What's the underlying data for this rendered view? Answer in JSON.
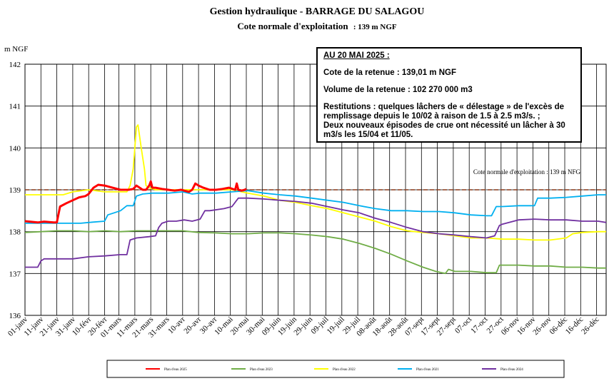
{
  "header": {
    "title": "Gestion hydraulique - BARRAGE DU SALAGOU",
    "subtitle_prefix": "Cote normale d'exploitation",
    "subtitle_value": ": 139 m NGF"
  },
  "infobox": {
    "date": "AU 20 MAI 2025 :",
    "cote": "Cote de la retenue : 139,01 m NGF",
    "volume": "Volume de la retenue : 102 270 000 m3",
    "restitutions_1": "Restitutions : quelques lâchers de « délestage » de l'excès de remplissage depuis le 10/02 à raison de 1.5 à 2.5 m3/s. ;",
    "restitutions_2": "Deux nouveaux épisodes de crue ont nécessité un lâcher à 30 m3/s les 15/04 et 11/05."
  },
  "chart_data": {
    "type": "line",
    "ylabel": "m NGF",
    "ylim": [
      136,
      142
    ],
    "yticks": [
      136,
      137,
      138,
      139,
      140,
      141,
      142
    ],
    "xlim": [
      0,
      365
    ],
    "xticks": [
      {
        "day": 0,
        "label": "01-janv"
      },
      {
        "day": 10,
        "label": "11-janv"
      },
      {
        "day": 20,
        "label": "21-janv"
      },
      {
        "day": 30,
        "label": "31-janv"
      },
      {
        "day": 40,
        "label": "10-févr"
      },
      {
        "day": 50,
        "label": "20-févr"
      },
      {
        "day": 59,
        "label": "01-mars"
      },
      {
        "day": 69,
        "label": "11-mars"
      },
      {
        "day": 79,
        "label": "21-mars"
      },
      {
        "day": 89,
        "label": "31-mars"
      },
      {
        "day": 99,
        "label": "10-avr"
      },
      {
        "day": 109,
        "label": "20-avr"
      },
      {
        "day": 119,
        "label": "30-avr"
      },
      {
        "day": 129,
        "label": "10-mai"
      },
      {
        "day": 139,
        "label": "20-mai"
      },
      {
        "day": 149,
        "label": "30-mai"
      },
      {
        "day": 159,
        "label": "09-juin"
      },
      {
        "day": 169,
        "label": "19-juin"
      },
      {
        "day": 179,
        "label": "29-juin"
      },
      {
        "day": 189,
        "label": "09-juil"
      },
      {
        "day": 199,
        "label": "19-juil"
      },
      {
        "day": 209,
        "label": "29-juil"
      },
      {
        "day": 219,
        "label": "08-août"
      },
      {
        "day": 229,
        "label": "18-août"
      },
      {
        "day": 239,
        "label": "28-août"
      },
      {
        "day": 249,
        "label": "07-sept"
      },
      {
        "day": 259,
        "label": "17-sept"
      },
      {
        "day": 269,
        "label": "27-sept"
      },
      {
        "day": 279,
        "label": "07-oct"
      },
      {
        "day": 289,
        "label": "17-oct"
      },
      {
        "day": 299,
        "label": "27-oct"
      },
      {
        "day": 309,
        "label": "06-nov"
      },
      {
        "day": 319,
        "label": "16-nov"
      },
      {
        "day": 329,
        "label": "26-nov"
      },
      {
        "day": 339,
        "label": "06-déc"
      },
      {
        "day": 349,
        "label": "16-déc"
      },
      {
        "day": 359,
        "label": "26-déc"
      }
    ],
    "reference_line": {
      "value": 139,
      "label": "Cote normale d'exploitation : 139 m NFG",
      "color": "#8b3a1a"
    },
    "grid": true,
    "legend_position": "bottom",
    "series": [
      {
        "name": "Plan d'eau 2025",
        "color": "#ff0000",
        "width": 3,
        "points": [
          [
            0,
            138.25
          ],
          [
            8,
            138.22
          ],
          [
            12,
            138.24
          ],
          [
            18,
            138.22
          ],
          [
            20,
            138.22
          ],
          [
            22,
            138.6
          ],
          [
            26,
            138.68
          ],
          [
            30,
            138.75
          ],
          [
            34,
            138.82
          ],
          [
            38,
            138.85
          ],
          [
            40,
            138.9
          ],
          [
            43,
            139.05
          ],
          [
            46,
            139.12
          ],
          [
            50,
            139.1
          ],
          [
            55,
            139.05
          ],
          [
            60,
            139.0
          ],
          [
            65,
            139.0
          ],
          [
            68,
            139.02
          ],
          [
            70,
            139.1
          ],
          [
            72,
            139.05
          ],
          [
            74,
            139.0
          ],
          [
            76,
            139.0
          ],
          [
            78,
            139.1
          ],
          [
            79,
            139.2
          ],
          [
            80,
            139.05
          ],
          [
            82,
            139.05
          ],
          [
            86,
            139.02
          ],
          [
            90,
            139.0
          ],
          [
            94,
            138.98
          ],
          [
            98,
            139.0
          ],
          [
            100,
            138.98
          ],
          [
            103,
            138.95
          ],
          [
            105,
            139.0
          ],
          [
            107,
            139.15
          ],
          [
            109,
            139.1
          ],
          [
            112,
            139.05
          ],
          [
            116,
            139.0
          ],
          [
            120,
            139.0
          ],
          [
            124,
            139.02
          ],
          [
            128,
            139.05
          ],
          [
            132,
            139.0
          ],
          [
            133,
            139.15
          ],
          [
            134,
            139.0
          ],
          [
            136,
            138.98
          ],
          [
            138,
            139.0
          ],
          [
            139,
            139.02
          ]
        ]
      },
      {
        "name": "Plan d'eau 2023",
        "color": "#70ad47",
        "width": 1.8,
        "points": [
          [
            0,
            137.98
          ],
          [
            10,
            138.0
          ],
          [
            20,
            138.02
          ],
          [
            30,
            138.02
          ],
          [
            40,
            138.0
          ],
          [
            50,
            138.02
          ],
          [
            60,
            138.0
          ],
          [
            70,
            138.02
          ],
          [
            80,
            138.02
          ],
          [
            90,
            138.02
          ],
          [
            99,
            138.02
          ],
          [
            109,
            137.98
          ],
          [
            119,
            137.97
          ],
          [
            130,
            137.95
          ],
          [
            140,
            137.95
          ],
          [
            150,
            137.97
          ],
          [
            160,
            137.97
          ],
          [
            170,
            137.95
          ],
          [
            180,
            137.92
          ],
          [
            190,
            137.88
          ],
          [
            200,
            137.82
          ],
          [
            210,
            137.72
          ],
          [
            220,
            137.6
          ],
          [
            230,
            137.46
          ],
          [
            240,
            137.3
          ],
          [
            250,
            137.15
          ],
          [
            258,
            137.05
          ],
          [
            264,
            137.0
          ],
          [
            266,
            137.1
          ],
          [
            270,
            137.05
          ],
          [
            280,
            137.05
          ],
          [
            290,
            137.02
          ],
          [
            296,
            137.02
          ],
          [
            298,
            137.2
          ],
          [
            310,
            137.2
          ],
          [
            320,
            137.18
          ],
          [
            330,
            137.18
          ],
          [
            340,
            137.15
          ],
          [
            350,
            137.15
          ],
          [
            360,
            137.13
          ],
          [
            365,
            137.13
          ]
        ]
      },
      {
        "name": "Plan d'eau 2022",
        "color": "#ffff00",
        "width": 1.8,
        "points": [
          [
            0,
            138.88
          ],
          [
            10,
            138.88
          ],
          [
            20,
            138.88
          ],
          [
            24,
            138.88
          ],
          [
            30,
            138.95
          ],
          [
            40,
            139.0
          ],
          [
            50,
            138.95
          ],
          [
            60,
            138.95
          ],
          [
            64,
            138.95
          ],
          [
            66,
            139.1
          ],
          [
            68,
            139.5
          ],
          [
            70,
            140.5
          ],
          [
            71,
            140.55
          ],
          [
            73,
            140.0
          ],
          [
            75,
            139.5
          ],
          [
            76,
            139.1
          ],
          [
            78,
            139.05
          ],
          [
            82,
            139.0
          ],
          [
            90,
            139.0
          ],
          [
            100,
            139.0
          ],
          [
            110,
            139.0
          ],
          [
            120,
            139.0
          ],
          [
            130,
            139.0
          ],
          [
            140,
            138.92
          ],
          [
            150,
            138.85
          ],
          [
            160,
            138.75
          ],
          [
            170,
            138.7
          ],
          [
            180,
            138.62
          ],
          [
            190,
            138.55
          ],
          [
            200,
            138.45
          ],
          [
            210,
            138.35
          ],
          [
            220,
            138.25
          ],
          [
            230,
            138.12
          ],
          [
            240,
            138.02
          ],
          [
            250,
            137.98
          ],
          [
            260,
            137.95
          ],
          [
            270,
            137.9
          ],
          [
            280,
            137.85
          ],
          [
            290,
            137.85
          ],
          [
            300,
            137.82
          ],
          [
            310,
            137.82
          ],
          [
            320,
            137.8
          ],
          [
            330,
            137.8
          ],
          [
            340,
            137.85
          ],
          [
            344,
            137.95
          ],
          [
            350,
            137.98
          ],
          [
            360,
            138.0
          ],
          [
            365,
            138.0
          ]
        ]
      },
      {
        "name": "Plan d'eau 2021",
        "color": "#00b0f0",
        "width": 1.8,
        "points": [
          [
            0,
            138.2
          ],
          [
            10,
            138.2
          ],
          [
            20,
            138.2
          ],
          [
            28,
            138.2
          ],
          [
            35,
            138.2
          ],
          [
            40,
            138.22
          ],
          [
            50,
            138.25
          ],
          [
            52,
            138.4
          ],
          [
            56,
            138.45
          ],
          [
            60,
            138.5
          ],
          [
            64,
            138.62
          ],
          [
            68,
            138.62
          ],
          [
            70,
            138.85
          ],
          [
            74,
            138.9
          ],
          [
            80,
            138.92
          ],
          [
            90,
            138.92
          ],
          [
            99,
            138.95
          ],
          [
            105,
            138.9
          ],
          [
            110,
            138.92
          ],
          [
            120,
            138.92
          ],
          [
            130,
            138.95
          ],
          [
            140,
            138.98
          ],
          [
            150,
            138.92
          ],
          [
            160,
            138.88
          ],
          [
            170,
            138.85
          ],
          [
            180,
            138.8
          ],
          [
            190,
            138.75
          ],
          [
            200,
            138.7
          ],
          [
            210,
            138.62
          ],
          [
            220,
            138.55
          ],
          [
            230,
            138.5
          ],
          [
            240,
            138.5
          ],
          [
            250,
            138.48
          ],
          [
            260,
            138.48
          ],
          [
            270,
            138.45
          ],
          [
            280,
            138.4
          ],
          [
            290,
            138.38
          ],
          [
            293,
            138.38
          ],
          [
            296,
            138.6
          ],
          [
            300,
            138.6
          ],
          [
            310,
            138.62
          ],
          [
            320,
            138.62
          ],
          [
            322,
            138.8
          ],
          [
            330,
            138.8
          ],
          [
            340,
            138.82
          ],
          [
            350,
            138.85
          ],
          [
            360,
            138.88
          ],
          [
            365,
            138.88
          ]
        ]
      },
      {
        "name": "Plan d'eau 2024",
        "color": "#7030a0",
        "width": 1.8,
        "points": [
          [
            0,
            137.15
          ],
          [
            8,
            137.15
          ],
          [
            10,
            137.3
          ],
          [
            12,
            137.35
          ],
          [
            20,
            137.35
          ],
          [
            30,
            137.35
          ],
          [
            40,
            137.4
          ],
          [
            50,
            137.42
          ],
          [
            60,
            137.45
          ],
          [
            64,
            137.45
          ],
          [
            66,
            137.8
          ],
          [
            70,
            137.85
          ],
          [
            78,
            137.88
          ],
          [
            82,
            137.9
          ],
          [
            84,
            138.1
          ],
          [
            86,
            138.2
          ],
          [
            90,
            138.25
          ],
          [
            95,
            138.25
          ],
          [
            100,
            138.28
          ],
          [
            105,
            138.25
          ],
          [
            110,
            138.3
          ],
          [
            113,
            138.5
          ],
          [
            116,
            138.5
          ],
          [
            125,
            138.55
          ],
          [
            130,
            138.6
          ],
          [
            134,
            138.8
          ],
          [
            140,
            138.8
          ],
          [
            150,
            138.78
          ],
          [
            160,
            138.75
          ],
          [
            170,
            138.72
          ],
          [
            180,
            138.68
          ],
          [
            190,
            138.6
          ],
          [
            200,
            138.52
          ],
          [
            210,
            138.45
          ],
          [
            220,
            138.32
          ],
          [
            230,
            138.22
          ],
          [
            240,
            138.1
          ],
          [
            250,
            138.0
          ],
          [
            260,
            137.95
          ],
          [
            270,
            137.92
          ],
          [
            280,
            137.88
          ],
          [
            290,
            137.85
          ],
          [
            295,
            137.9
          ],
          [
            298,
            138.15
          ],
          [
            300,
            138.18
          ],
          [
            310,
            138.28
          ],
          [
            320,
            138.3
          ],
          [
            330,
            138.28
          ],
          [
            340,
            138.28
          ],
          [
            350,
            138.25
          ],
          [
            360,
            138.25
          ],
          [
            365,
            138.22
          ]
        ]
      }
    ]
  }
}
